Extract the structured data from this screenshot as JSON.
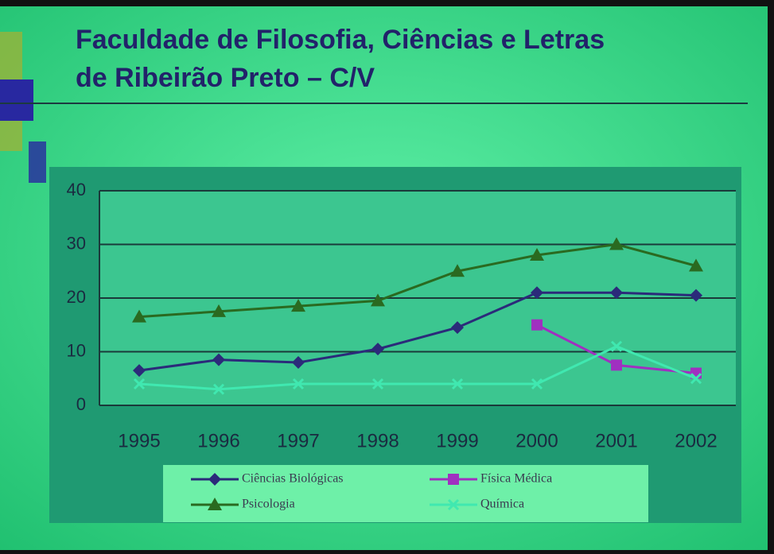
{
  "chart_data": {
    "type": "line",
    "title": [
      "Faculdade de Filosofia, Ciências e Letras",
      "de Ribeirão Preto – C/V"
    ],
    "categories": [
      "1995",
      "1996",
      "1997",
      "1998",
      "1999",
      "2000",
      "2001",
      "2002"
    ],
    "series": [
      {
        "name": "Ciências Biológicas",
        "color": "#2b2a7a",
        "marker": "diamond",
        "values": [
          6.5,
          8.5,
          8,
          10.5,
          14.5,
          21,
          21,
          20.5
        ]
      },
      {
        "name": "Física Médica",
        "color": "#a030c0",
        "marker": "square",
        "values": [
          null,
          null,
          null,
          null,
          null,
          15,
          7.5,
          6
        ]
      },
      {
        "name": "Psicologia",
        "color": "#2a6a20",
        "marker": "triangle",
        "values": [
          16.5,
          17.5,
          18.5,
          19.5,
          25,
          28,
          30,
          26
        ]
      },
      {
        "name": "Química",
        "color": "#40e8b0",
        "marker": "cross",
        "values": [
          4,
          3,
          4,
          4,
          4,
          4,
          11,
          5
        ]
      }
    ],
    "ylim": [
      0,
      40
    ],
    "yticks": [
      0,
      10,
      20,
      30,
      40
    ],
    "grid": true
  }
}
